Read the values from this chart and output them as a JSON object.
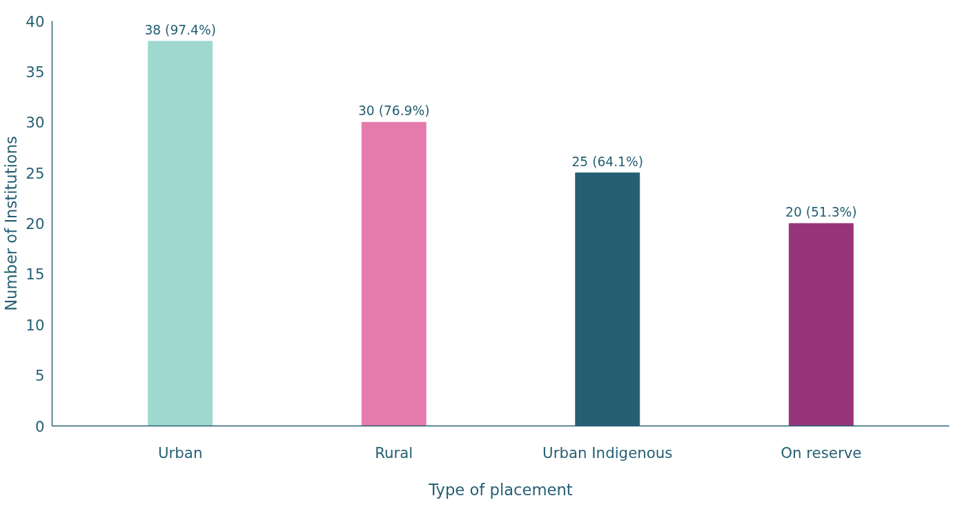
{
  "chart_data": {
    "type": "bar",
    "xlabel": "Type of placement",
    "ylabel": "Number of Institutions",
    "categories": [
      "Urban",
      "Rural",
      "Urban Indigenous",
      "On reserve"
    ],
    "values": [
      38,
      30,
      25,
      20
    ],
    "colors": [
      "#9fd8cf",
      "#e57aac",
      "#265f73",
      "#96347a"
    ],
    "value_labels": [
      "38 (97.4%)",
      "30 (76.9%)",
      "25 (64.1%)",
      "20 (51.3%)"
    ],
    "ylim": [
      0,
      40
    ],
    "yticks": [
      0,
      5,
      10,
      15,
      20,
      25,
      30,
      35,
      40
    ],
    "grid": false
  }
}
